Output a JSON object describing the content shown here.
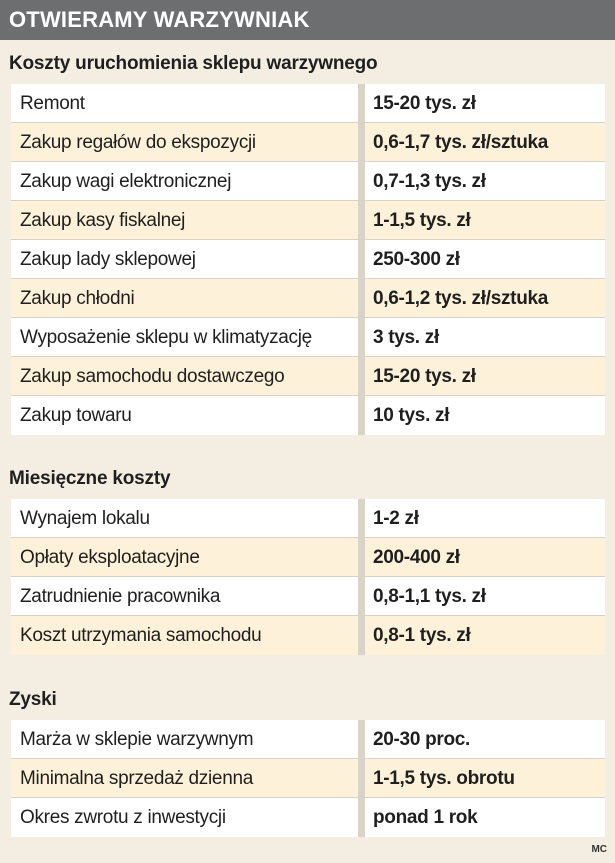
{
  "header": {
    "title": "OTWIERAMY WARZYWNIAK"
  },
  "sections": [
    {
      "title": "Koszty uruchomienia sklepu warzywnego",
      "rows": [
        {
          "label": "Remont",
          "value": "15-20 tys. zł"
        },
        {
          "label": "Zakup regałów do ekspozycji",
          "value": "0,6-1,7 tys. zł/sztuka"
        },
        {
          "label": "Zakup wagi elektronicznej",
          "value": "0,7-1,3 tys. zł"
        },
        {
          "label": "Zakup kasy fiskalnej",
          "value": "1-1,5 tys. zł"
        },
        {
          "label": "Zakup lady sklepowej",
          "value": "250-300 zł"
        },
        {
          "label": "Zakup chłodni",
          "value": "0,6-1,2 tys. zł/sztuka"
        },
        {
          "label": "Wyposażenie sklepu w klimatyzację",
          "value": "3 tys. zł"
        },
        {
          "label": "Zakup samochodu dostawczego",
          "value": "15-20 tys. zł"
        },
        {
          "label": "Zakup towaru",
          "value": "10 tys. zł"
        }
      ]
    },
    {
      "title": "Miesięczne koszty",
      "rows": [
        {
          "label": "Wynajem lokalu",
          "value": "1-2 zł"
        },
        {
          "label": "Opłaty eksploatacyjne",
          "value": "200-400 zł"
        },
        {
          "label": "Zatrudnienie pracownika",
          "value": "0,8-1,1 tys. zł"
        },
        {
          "label": "Koszt utrzymania samochodu",
          "value": "0,8-1 tys. zł"
        }
      ]
    },
    {
      "title": "Zyski",
      "rows": [
        {
          "label": "Marża w sklepie warzywnym",
          "value": "20-30 proc."
        },
        {
          "label": "Minimalna sprzedaż dzienna",
          "value": "1-1,5 tys. obrotu"
        },
        {
          "label": "Okres zwrotu z inwestycji",
          "value": "ponad 1 rok"
        }
      ]
    }
  ],
  "footer": {
    "credit": "MC"
  }
}
